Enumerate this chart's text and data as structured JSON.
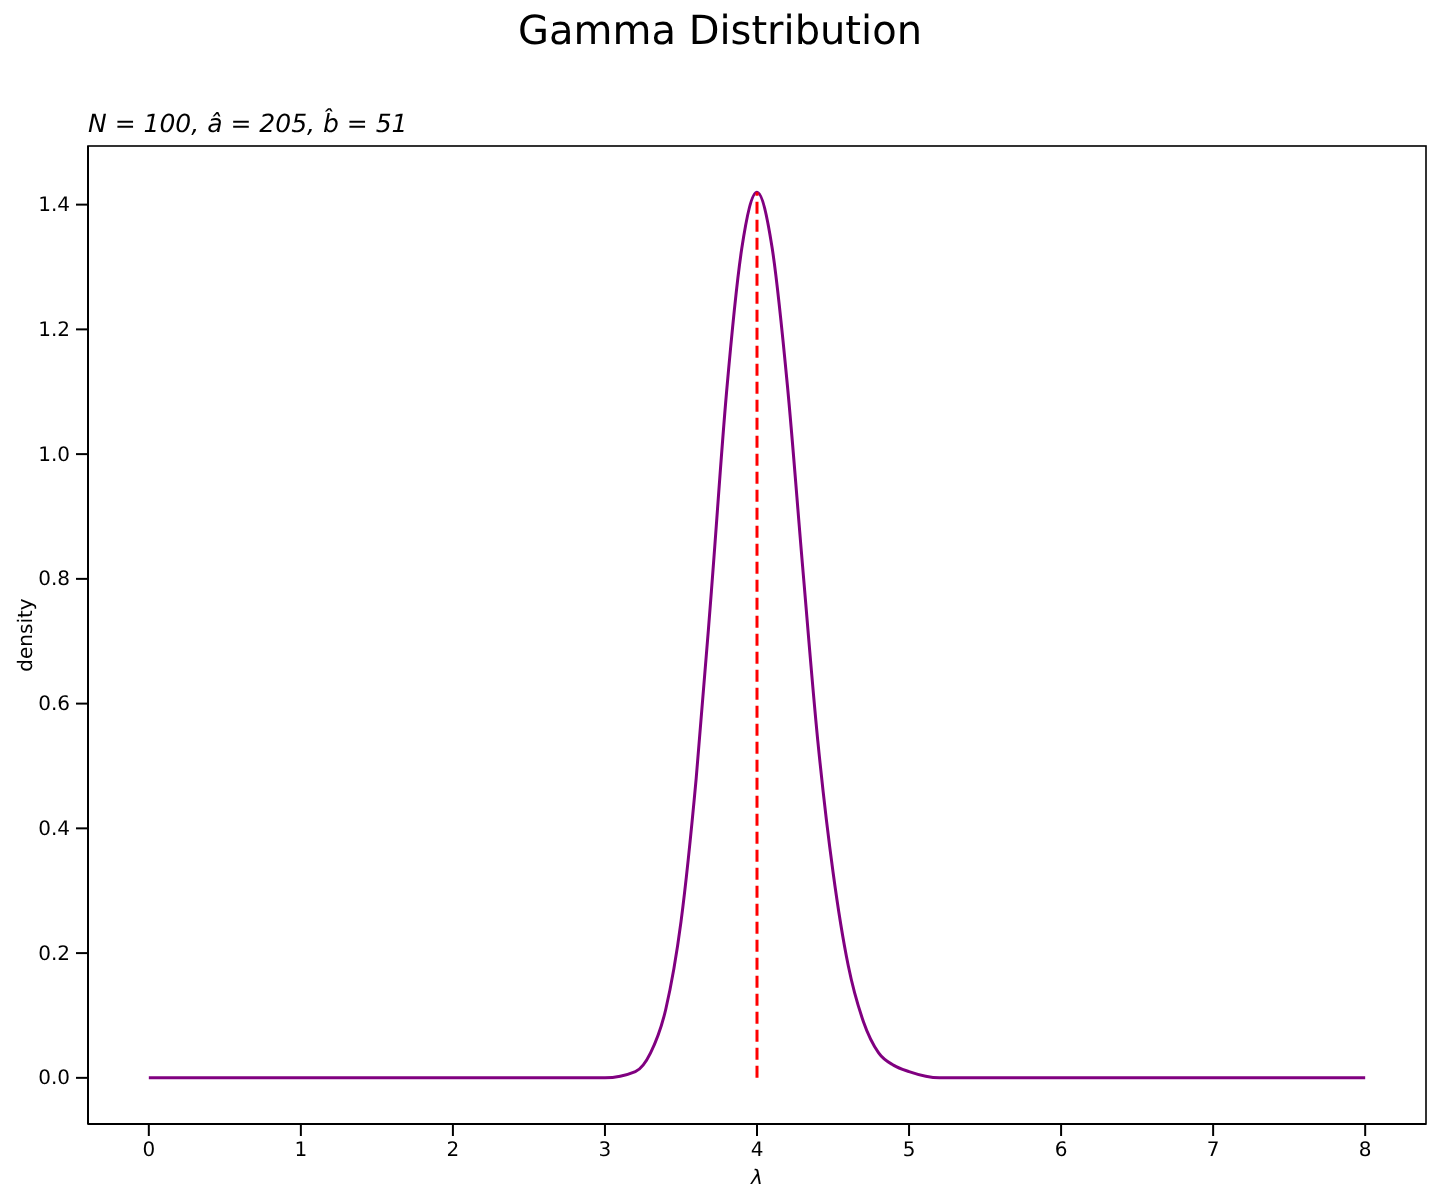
{
  "chart_data": {
    "type": "line",
    "title": "Gamma Distribution",
    "subtitle": "N = 100, â = 205, b̂ = 51",
    "xlabel": "λ",
    "ylabel": "density",
    "xlim": [
      -0.4,
      8.4
    ],
    "ylim": [
      -0.074,
      1.494
    ],
    "xticks": [
      0,
      1,
      2,
      3,
      4,
      5,
      6,
      7,
      8
    ],
    "yticks": [
      {
        "value": 0,
        "label": "0.0"
      },
      {
        "value": 0.2,
        "label": "0.2"
      },
      {
        "value": 0.4,
        "label": "0.4"
      },
      {
        "value": 0.6,
        "label": "0.6"
      },
      {
        "value": 0.8,
        "label": "0.8"
      },
      {
        "value": 1,
        "label": "1.0"
      },
      {
        "value": 1.2,
        "label": "1.2"
      },
      {
        "value": 1.4,
        "label": "1.4"
      }
    ],
    "grid": false,
    "series": [
      {
        "color": "#800080",
        "line_style": "solid",
        "x": [
          0,
          1,
          2,
          2.8,
          3.0,
          3.2,
          3.3,
          3.4,
          3.5,
          3.6,
          3.7,
          3.8,
          3.9,
          4.0,
          4.1,
          4.2,
          4.3,
          4.4,
          4.5,
          4.6,
          4.7,
          4.8,
          4.9,
          5.0,
          5.2,
          5.5,
          6,
          7,
          8
        ],
        "values": [
          0,
          0,
          0,
          0,
          0,
          0.01,
          0.04,
          0.11,
          0.25,
          0.48,
          0.78,
          1.1,
          1.33,
          1.42,
          1.33,
          1.11,
          0.82,
          0.54,
          0.33,
          0.18,
          0.09,
          0.04,
          0.02,
          0.01,
          0,
          0,
          0,
          0,
          0
        ]
      },
      {
        "color": "#ff0000",
        "line_style": "dashed",
        "x": [
          4,
          4
        ],
        "values": [
          0,
          1.42
        ]
      }
    ]
  }
}
